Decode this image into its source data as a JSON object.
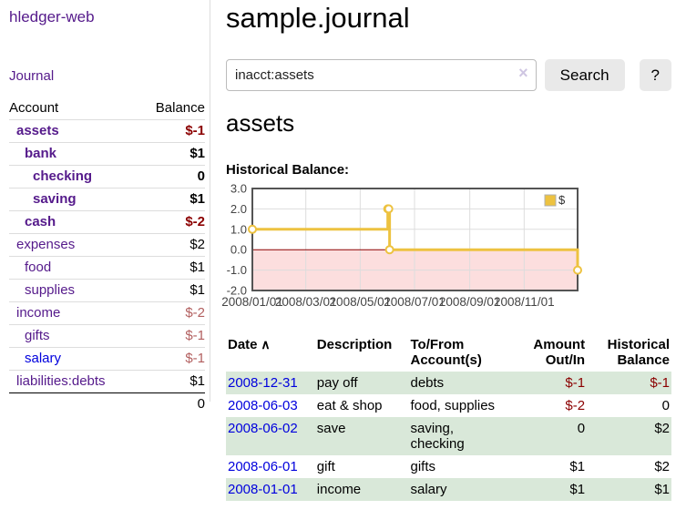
{
  "sidebar": {
    "app_title": "hledger-web",
    "nav": {
      "journal_label": "Journal"
    },
    "accounts_table": {
      "headers": {
        "account": "Account",
        "balance": "Balance"
      },
      "rows": [
        {
          "account": "assets",
          "balance": "$-1",
          "indent": 1,
          "bold": true,
          "negative": "strong"
        },
        {
          "account": "bank",
          "balance": "$1",
          "indent": 2,
          "bold": true,
          "negative": "none"
        },
        {
          "account": "checking",
          "balance": "0",
          "indent": 3,
          "bold": true,
          "negative": "none"
        },
        {
          "account": "saving",
          "balance": "$1",
          "indent": 3,
          "bold": true,
          "negative": "none"
        },
        {
          "account": "cash",
          "balance": "$-2",
          "indent": 2,
          "bold": true,
          "negative": "strong"
        },
        {
          "account": "expenses",
          "balance": "$2",
          "indent": 1,
          "bold": false,
          "negative": "none"
        },
        {
          "account": "food",
          "balance": "$1",
          "indent": 2,
          "bold": false,
          "negative": "none"
        },
        {
          "account": "supplies",
          "balance": "$1",
          "indent": 2,
          "bold": false,
          "negative": "none"
        },
        {
          "account": "income",
          "balance": "$-2",
          "indent": 1,
          "bold": false,
          "negative": "soft"
        },
        {
          "account": "gifts",
          "balance": "$-1",
          "indent": 2,
          "bold": false,
          "negative": "soft"
        },
        {
          "account": "salary",
          "balance": "$-1",
          "indent": 2,
          "bold": false,
          "negative": "soft",
          "link_color": "blue"
        },
        {
          "account": "liabilities:debts",
          "balance": "$1",
          "indent": 1,
          "bold": false,
          "negative": "none"
        }
      ],
      "total": "0"
    }
  },
  "main": {
    "title": "sample.journal",
    "search": {
      "value": "inacct:assets",
      "clear_icon": "×",
      "button_label": "Search",
      "help_label": "?"
    },
    "account_heading": "assets",
    "chart_label": "Historical Balance:",
    "register_table": {
      "headers": [
        {
          "key": "date",
          "label": "Date",
          "align": "left",
          "sort_icon": "∧"
        },
        {
          "key": "description",
          "label": "Description",
          "align": "left"
        },
        {
          "key": "accounts",
          "label": "To/From Account(s)",
          "align": "left"
        },
        {
          "key": "amount",
          "label": "Amount Out/In",
          "align": "right"
        },
        {
          "key": "balance",
          "label": "Historical Balance",
          "align": "right"
        }
      ],
      "rows": [
        {
          "date": "2008-12-31",
          "description": "pay off",
          "accounts_lines": [
            "debts"
          ],
          "amount": "$-1",
          "amount_negative": true,
          "balance": "$-1",
          "balance_negative": true,
          "shaded": true
        },
        {
          "date": "2008-06-03",
          "description": "eat & shop",
          "accounts_lines": [
            "food, supplies"
          ],
          "amount": "$-2",
          "amount_negative": true,
          "balance": "0",
          "balance_negative": false,
          "shaded": false
        },
        {
          "date": "2008-06-02",
          "description": "save",
          "accounts_lines": [
            "saving,",
            "checking"
          ],
          "amount": "0",
          "amount_negative": false,
          "balance": "$2",
          "balance_negative": false,
          "shaded": true
        },
        {
          "date": "2008-06-01",
          "description": "gift",
          "accounts_lines": [
            "gifts"
          ],
          "amount": "$1",
          "amount_negative": false,
          "balance": "$2",
          "balance_negative": false,
          "shaded": false
        },
        {
          "date": "2008-01-01",
          "description": "income",
          "accounts_lines": [
            "salary"
          ],
          "amount": "$1",
          "amount_negative": false,
          "balance": "$1",
          "balance_negative": false,
          "shaded": true
        }
      ]
    }
  },
  "chart_data": {
    "type": "line",
    "title": "Historical Balance:",
    "series": [
      {
        "name": "$",
        "color": "#edc240",
        "step": "after",
        "markers": true,
        "points": [
          [
            "2008-01-01",
            1
          ],
          [
            "2008-06-01",
            2
          ],
          [
            "2008-06-02",
            2
          ],
          [
            "2008-06-03",
            0
          ],
          [
            "2008-12-31",
            -1
          ]
        ]
      }
    ],
    "ylim": [
      -2,
      3
    ],
    "y_ticks": [
      "3.0",
      "2.0",
      "1.0",
      "0.0",
      "-1.0",
      "-2.0"
    ],
    "x_ticks": [
      "2008/01/01",
      "2008/03/01",
      "2008/05/01",
      "2008/07/01",
      "2008/09/01",
      "2008/11/01"
    ],
    "x_range": [
      "2008-01-01",
      "2008-12-31"
    ],
    "legend": {
      "label": "$",
      "position": "top-right"
    },
    "grid": true,
    "colors": {
      "negative_region_fill": "#fcdede",
      "zero_line": "#8b0000",
      "gridline": "#dddddd",
      "border": "#545454",
      "tick_text": "#444444"
    }
  }
}
